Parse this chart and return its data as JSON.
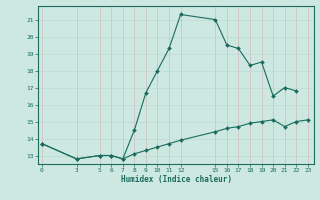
{
  "title": "",
  "xlabel": "Humidex (Indice chaleur)",
  "ylabel": "",
  "bg_color": "#cce8e0",
  "line_color": "#1a6b5e",
  "grid_color": "#b8d8d0",
  "x_upper": [
    0,
    3,
    5,
    6,
    7,
    8,
    9,
    10,
    11,
    12,
    15,
    16,
    17,
    18,
    19,
    20,
    21,
    22
  ],
  "y_upper": [
    13.7,
    12.8,
    13.0,
    13.0,
    12.8,
    14.5,
    16.7,
    18.0,
    19.3,
    21.3,
    21.0,
    19.5,
    19.3,
    18.3,
    18.5,
    16.5,
    17.0,
    16.8
  ],
  "x_lower": [
    0,
    3,
    5,
    6,
    7,
    8,
    9,
    10,
    11,
    12,
    15,
    16,
    17,
    18,
    19,
    20,
    21,
    22,
    23
  ],
  "y_lower": [
    13.7,
    12.8,
    13.0,
    13.0,
    12.8,
    13.1,
    13.3,
    13.5,
    13.7,
    13.9,
    14.4,
    14.6,
    14.7,
    14.9,
    15.0,
    15.1,
    14.7,
    15.0,
    15.1
  ],
  "yticks": [
    13,
    14,
    15,
    16,
    17,
    18,
    19,
    20,
    21
  ],
  "xticks": [
    0,
    3,
    5,
    6,
    7,
    8,
    9,
    10,
    11,
    12,
    15,
    16,
    17,
    18,
    19,
    20,
    21,
    22,
    23
  ],
  "xlabels": [
    "0",
    "3",
    "5",
    "6",
    "7",
    "8",
    "9",
    "10",
    "11",
    "12",
    "15",
    "16",
    "17",
    "18",
    "19",
    "20",
    "21",
    "22",
    "23"
  ],
  "ylim": [
    12.5,
    21.8
  ],
  "xlim": [
    -0.3,
    23.5
  ]
}
